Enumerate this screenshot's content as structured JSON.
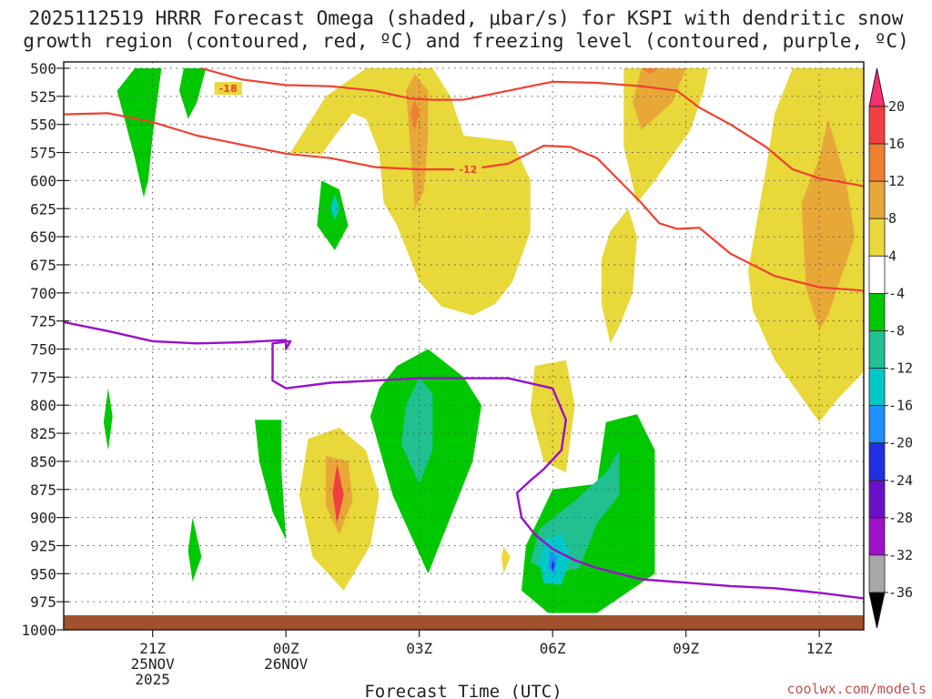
{
  "chart_data": {
    "type": "contour",
    "title_line1": "2025112519 HRRR Forecast Omega (shaded, μbar/s) for KSPI with dendritic snow",
    "title_line2": "growth region (contoured, red, ºC) and freezing level (contoured, purple, ºC)",
    "xlabel": "Forecast Time (UTC)",
    "credit": "coolwx.com/models",
    "x_ticks": [
      {
        "hour": 21,
        "lines": [
          "21Z",
          "25NOV",
          "2025"
        ]
      },
      {
        "hour": 24,
        "lines": [
          "00Z",
          "26NOV"
        ]
      },
      {
        "hour": 27,
        "lines": [
          "03Z"
        ]
      },
      {
        "hour": 30,
        "lines": [
          "06Z"
        ]
      },
      {
        "hour": 33,
        "lines": [
          "09Z"
        ]
      },
      {
        "hour": 36,
        "lines": [
          "12Z"
        ]
      }
    ],
    "x_range_hours": [
      19,
      37
    ],
    "y_range_mb": [
      500,
      1000
    ],
    "y_ticks": [
      "500",
      "525",
      "550",
      "575",
      "600",
      "625",
      "650",
      "675",
      "700",
      "725",
      "750",
      "775",
      "800",
      "825",
      "850",
      "875",
      "900",
      "925",
      "950",
      "975",
      "1000"
    ],
    "colorbar": {
      "labels": [
        "20",
        "16",
        "12",
        "8",
        "4",
        "-4",
        "-8",
        "-12",
        "-16",
        "-20",
        "-24",
        "-28",
        "-32",
        "-36"
      ],
      "colors": [
        "#f8306e",
        "#f04040",
        "#ee8030",
        "#e8a838",
        "#e8d83a",
        "#ffffff",
        "#00c800",
        "#20c090",
        "#00c8c8",
        "#1e90ff",
        "#2030e0",
        "#6a10c8",
        "#a010c8",
        "#a8a8a8",
        "#000000"
      ]
    },
    "colors": {
      "dendritic": "#f04030",
      "freezing": "#9a10c8",
      "ground": "#a0522d",
      "grid": "#555555"
    },
    "contour_labels": [
      {
        "text": "-18",
        "hour": 22.7,
        "mb": 518
      },
      {
        "text": "-12",
        "hour": 28.1,
        "mb": 590
      }
    ],
    "dendritic_lines": [
      [
        [
          22.1,
          500
        ],
        [
          23,
          510
        ],
        [
          24,
          515
        ],
        [
          25,
          516
        ],
        [
          26,
          520
        ],
        [
          26.8,
          527
        ],
        [
          27.3,
          528
        ],
        [
          28,
          528
        ],
        [
          29,
          520
        ],
        [
          30,
          512
        ],
        [
          31,
          513
        ],
        [
          32,
          516
        ],
        [
          32.8,
          520
        ],
        [
          33.3,
          535
        ],
        [
          34,
          550
        ],
        [
          34.8,
          570
        ],
        [
          35.4,
          590
        ],
        [
          36,
          598
        ],
        [
          36.6,
          602
        ],
        [
          37,
          605
        ]
      ],
      [
        [
          19,
          541
        ],
        [
          20,
          540
        ],
        [
          21,
          548
        ],
        [
          22,
          560
        ],
        [
          23,
          568
        ],
        [
          24,
          576
        ],
        [
          25,
          580
        ],
        [
          26,
          588
        ],
        [
          27,
          590
        ],
        [
          28.1,
          590
        ],
        [
          29,
          585
        ],
        [
          29.8,
          569
        ],
        [
          30.4,
          570
        ],
        [
          31,
          580
        ],
        [
          31.5,
          600
        ],
        [
          32,
          620
        ],
        [
          32.4,
          638
        ],
        [
          32.8,
          643
        ],
        [
          33.3,
          642
        ],
        [
          34,
          665
        ],
        [
          35,
          685
        ],
        [
          36,
          695
        ],
        [
          37,
          698
        ]
      ]
    ],
    "freezing_line": [
      [
        19,
        726
      ],
      [
        20,
        734
      ],
      [
        21,
        743
      ],
      [
        22,
        745
      ],
      [
        23,
        744
      ],
      [
        24,
        742
      ],
      [
        24,
        750
      ],
      [
        24.1,
        743
      ],
      [
        23.7,
        745
      ],
      [
        23.7,
        778
      ],
      [
        24,
        785
      ],
      [
        25,
        780
      ],
      [
        26,
        778
      ],
      [
        27,
        776
      ],
      [
        28,
        776
      ],
      [
        29,
        776
      ],
      [
        30,
        785
      ],
      [
        30.3,
        813
      ],
      [
        30.2,
        840
      ],
      [
        29.8,
        857
      ],
      [
        29.5,
        867
      ],
      [
        29.2,
        878
      ],
      [
        29.3,
        900
      ],
      [
        29.6,
        915
      ],
      [
        30,
        928
      ],
      [
        30.5,
        938
      ],
      [
        31,
        945
      ],
      [
        32,
        955
      ],
      [
        33,
        958
      ],
      [
        34,
        961
      ],
      [
        35,
        963
      ],
      [
        36,
        967
      ],
      [
        37,
        972
      ]
    ],
    "omega_regions": [
      {
        "value": -6,
        "points": [
          [
            20.6,
            500
          ],
          [
            21.2,
            500
          ],
          [
            21,
            560
          ],
          [
            20.9,
            600
          ],
          [
            20.8,
            615
          ],
          [
            20.6,
            580
          ],
          [
            20.2,
            520
          ]
        ]
      },
      {
        "value": -6,
        "points": [
          [
            21.7,
            500
          ],
          [
            22.2,
            500
          ],
          [
            22,
            530
          ],
          [
            21.8,
            545
          ],
          [
            21.6,
            520
          ]
        ]
      },
      {
        "value": -6,
        "points": [
          [
            20,
            785
          ],
          [
            20.1,
            810
          ],
          [
            20,
            840
          ],
          [
            19.9,
            815
          ]
        ]
      },
      {
        "value": -6,
        "points": [
          [
            24.8,
            600
          ],
          [
            25.2,
            608
          ],
          [
            25.4,
            640
          ],
          [
            25.1,
            662
          ],
          [
            24.7,
            640
          ]
        ]
      },
      {
        "value": -14,
        "points": [
          [
            25.1,
            612
          ],
          [
            25.2,
            625
          ],
          [
            25.1,
            635
          ],
          [
            25,
            625
          ]
        ]
      },
      {
        "value": -6,
        "points": [
          [
            21.9,
            900
          ],
          [
            22.1,
            935
          ],
          [
            21.9,
            957
          ],
          [
            21.8,
            930
          ]
        ]
      },
      {
        "value": -6,
        "points": [
          [
            23.3,
            813
          ],
          [
            23.9,
            813
          ],
          [
            23.9,
            858
          ],
          [
            24,
            920
          ],
          [
            23.7,
            895
          ],
          [
            23.4,
            850
          ]
        ]
      },
      {
        "value": 6,
        "points": [
          [
            24.1,
            575
          ],
          [
            24.9,
            525
          ],
          [
            25.8,
            500
          ],
          [
            27.3,
            500
          ],
          [
            27.7,
            525
          ],
          [
            28,
            560
          ],
          [
            29.1,
            565
          ],
          [
            29.5,
            600
          ],
          [
            29.5,
            645
          ],
          [
            29.1,
            690
          ],
          [
            28.7,
            710
          ],
          [
            28.2,
            720
          ],
          [
            27.5,
            712
          ],
          [
            27,
            690
          ],
          [
            26.5,
            640
          ],
          [
            26.2,
            620
          ],
          [
            26.1,
            575
          ],
          [
            25.8,
            545
          ],
          [
            25.5,
            540
          ],
          [
            25.1,
            560
          ],
          [
            24.8,
            577
          ]
        ]
      },
      {
        "value": 10,
        "points": [
          [
            26.9,
            505
          ],
          [
            27.2,
            520
          ],
          [
            27.2,
            560
          ],
          [
            27.1,
            610
          ],
          [
            26.9,
            625
          ],
          [
            26.8,
            570
          ],
          [
            26.7,
            520
          ]
        ]
      },
      {
        "value": 14,
        "points": [
          [
            26.9,
            528
          ],
          [
            27,
            540
          ],
          [
            26.9,
            555
          ],
          [
            26.8,
            540
          ]
        ]
      },
      {
        "value": -6,
        "points": [
          [
            26.5,
            765
          ],
          [
            27.2,
            750
          ],
          [
            28,
            775
          ],
          [
            28.4,
            800
          ],
          [
            28.2,
            850
          ],
          [
            27.8,
            890
          ],
          [
            27.2,
            950
          ],
          [
            26.4,
            880
          ],
          [
            25.9,
            810
          ],
          [
            26.1,
            785
          ]
        ]
      },
      {
        "value": -10,
        "points": [
          [
            27,
            775
          ],
          [
            27.3,
            790
          ],
          [
            27.3,
            840
          ],
          [
            27,
            870
          ],
          [
            26.6,
            835
          ],
          [
            26.7,
            800
          ]
        ]
      },
      {
        "value": 6,
        "points": [
          [
            24.5,
            830
          ],
          [
            25.2,
            820
          ],
          [
            25.8,
            840
          ],
          [
            26.1,
            880
          ],
          [
            25.9,
            925
          ],
          [
            25.3,
            965
          ],
          [
            24.6,
            935
          ],
          [
            24.3,
            880
          ]
        ]
      },
      {
        "value": 10,
        "points": [
          [
            24.9,
            845
          ],
          [
            25.4,
            850
          ],
          [
            25.5,
            885
          ],
          [
            25.2,
            915
          ],
          [
            24.9,
            890
          ]
        ]
      },
      {
        "value": 16,
        "points": [
          [
            25.15,
            852
          ],
          [
            25.3,
            880
          ],
          [
            25.15,
            905
          ],
          [
            25.05,
            878
          ]
        ]
      },
      {
        "value": 6,
        "points": [
          [
            28.9,
            926
          ],
          [
            29.05,
            935
          ],
          [
            28.9,
            950
          ],
          [
            28.85,
            935
          ]
        ]
      },
      {
        "value": 6,
        "points": [
          [
            29.6,
            765
          ],
          [
            30.3,
            760
          ],
          [
            30.5,
            800
          ],
          [
            30.3,
            860
          ],
          [
            29.8,
            850
          ],
          [
            29.5,
            805
          ]
        ]
      },
      {
        "value": 6,
        "points": [
          [
            31.3,
            645
          ],
          [
            31.7,
            625
          ],
          [
            31.9,
            650
          ],
          [
            31.8,
            700
          ],
          [
            31.5,
            730
          ],
          [
            31.3,
            745
          ],
          [
            31.1,
            710
          ],
          [
            31.1,
            670
          ]
        ]
      },
      {
        "value": 6,
        "points": [
          [
            31.6,
            500
          ],
          [
            33.5,
            500
          ],
          [
            33.4,
            520
          ],
          [
            33.1,
            555
          ],
          [
            32.6,
            583
          ],
          [
            32.3,
            600
          ],
          [
            31.9,
            620
          ],
          [
            31.6,
            570
          ]
        ]
      },
      {
        "value": 10,
        "points": [
          [
            32,
            500
          ],
          [
            33,
            500
          ],
          [
            32.7,
            530
          ],
          [
            32,
            555
          ],
          [
            31.8,
            530
          ]
        ]
      },
      {
        "value": 14,
        "points": [
          [
            32,
            500
          ],
          [
            32.4,
            500
          ],
          [
            32.2,
            505
          ]
        ]
      },
      {
        "value": -6,
        "points": [
          [
            30,
            875
          ],
          [
            31,
            870
          ],
          [
            31.2,
            815
          ],
          [
            31.9,
            808
          ],
          [
            32.3,
            840
          ],
          [
            32.3,
            900
          ],
          [
            32.3,
            950
          ],
          [
            31,
            985
          ],
          [
            29.9,
            985
          ],
          [
            29.3,
            965
          ],
          [
            29.4,
            925
          ]
        ]
      },
      {
        "value": -10,
        "points": [
          [
            29.7,
            910
          ],
          [
            30.5,
            885
          ],
          [
            31.2,
            860
          ],
          [
            31.5,
            840
          ],
          [
            31.5,
            880
          ],
          [
            31,
            905
          ],
          [
            30.6,
            945
          ],
          [
            30,
            950
          ],
          [
            29.5,
            940
          ]
        ]
      },
      {
        "value": -14,
        "points": [
          [
            29.8,
            920
          ],
          [
            30.2,
            915
          ],
          [
            30.4,
            935
          ],
          [
            30.2,
            960
          ],
          [
            29.8,
            958
          ],
          [
            29.7,
            940
          ]
        ]
      },
      {
        "value": -18,
        "points": [
          [
            29.95,
            930
          ],
          [
            30.1,
            935
          ],
          [
            30.05,
            950
          ],
          [
            29.9,
            945
          ]
        ]
      },
      {
        "value": -22,
        "points": [
          [
            30,
            938
          ],
          [
            30.05,
            942
          ],
          [
            30,
            948
          ],
          [
            29.97,
            943
          ]
        ]
      },
      {
        "value": 6,
        "points": [
          [
            35.4,
            500
          ],
          [
            37,
            500
          ],
          [
            37,
            770
          ],
          [
            36.4,
            795
          ],
          [
            36,
            815
          ],
          [
            35,
            760
          ],
          [
            34.5,
            715
          ],
          [
            34.4,
            680
          ],
          [
            34.8,
            590
          ],
          [
            35,
            540
          ]
        ]
      },
      {
        "value": 10,
        "points": [
          [
            35.6,
            620
          ],
          [
            36,
            580
          ],
          [
            36.2,
            545
          ],
          [
            36.6,
            600
          ],
          [
            36.8,
            650
          ],
          [
            36.2,
            720
          ],
          [
            36,
            733
          ],
          [
            35.7,
            695
          ]
        ]
      }
    ]
  }
}
